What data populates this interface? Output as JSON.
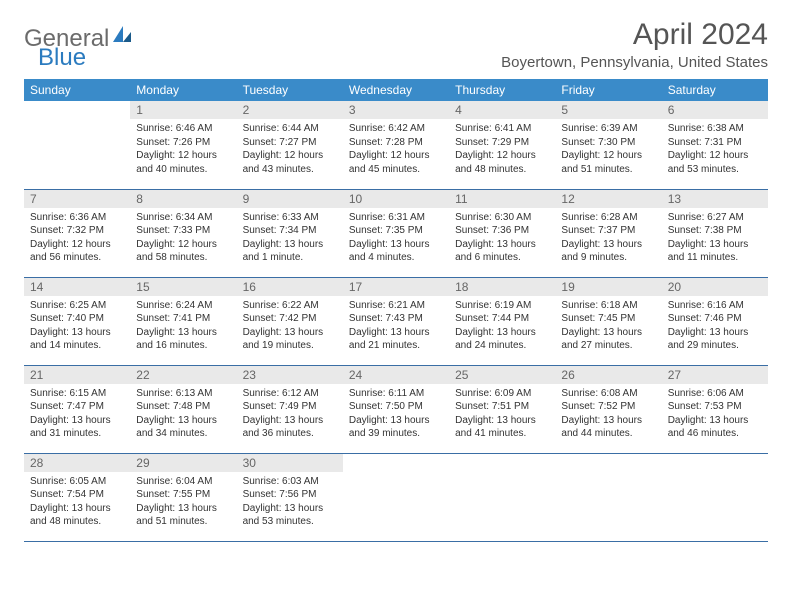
{
  "logo": {
    "text1": "General",
    "text2": "Blue"
  },
  "title": "April 2024",
  "location": "Boyertown, Pennsylvania, United States",
  "colors": {
    "header_bg": "#3a8bc9",
    "header_text": "#ffffff",
    "daynum_bg": "#e9e9e9",
    "daynum_text": "#666666",
    "row_border": "#3a6ea5",
    "body_text": "#333333",
    "title_text": "#555555",
    "logo_gray": "#6b6b6b",
    "logo_blue": "#2b7bbf"
  },
  "dayNames": [
    "Sunday",
    "Monday",
    "Tuesday",
    "Wednesday",
    "Thursday",
    "Friday",
    "Saturday"
  ],
  "weeks": [
    [
      null,
      {
        "n": "1",
        "sr": "6:46 AM",
        "ss": "7:26 PM",
        "dl": "12 hours and 40 minutes."
      },
      {
        "n": "2",
        "sr": "6:44 AM",
        "ss": "7:27 PM",
        "dl": "12 hours and 43 minutes."
      },
      {
        "n": "3",
        "sr": "6:42 AM",
        "ss": "7:28 PM",
        "dl": "12 hours and 45 minutes."
      },
      {
        "n": "4",
        "sr": "6:41 AM",
        "ss": "7:29 PM",
        "dl": "12 hours and 48 minutes."
      },
      {
        "n": "5",
        "sr": "6:39 AM",
        "ss": "7:30 PM",
        "dl": "12 hours and 51 minutes."
      },
      {
        "n": "6",
        "sr": "6:38 AM",
        "ss": "7:31 PM",
        "dl": "12 hours and 53 minutes."
      }
    ],
    [
      {
        "n": "7",
        "sr": "6:36 AM",
        "ss": "7:32 PM",
        "dl": "12 hours and 56 minutes."
      },
      {
        "n": "8",
        "sr": "6:34 AM",
        "ss": "7:33 PM",
        "dl": "12 hours and 58 minutes."
      },
      {
        "n": "9",
        "sr": "6:33 AM",
        "ss": "7:34 PM",
        "dl": "13 hours and 1 minute."
      },
      {
        "n": "10",
        "sr": "6:31 AM",
        "ss": "7:35 PM",
        "dl": "13 hours and 4 minutes."
      },
      {
        "n": "11",
        "sr": "6:30 AM",
        "ss": "7:36 PM",
        "dl": "13 hours and 6 minutes."
      },
      {
        "n": "12",
        "sr": "6:28 AM",
        "ss": "7:37 PM",
        "dl": "13 hours and 9 minutes."
      },
      {
        "n": "13",
        "sr": "6:27 AM",
        "ss": "7:38 PM",
        "dl": "13 hours and 11 minutes."
      }
    ],
    [
      {
        "n": "14",
        "sr": "6:25 AM",
        "ss": "7:40 PM",
        "dl": "13 hours and 14 minutes."
      },
      {
        "n": "15",
        "sr": "6:24 AM",
        "ss": "7:41 PM",
        "dl": "13 hours and 16 minutes."
      },
      {
        "n": "16",
        "sr": "6:22 AM",
        "ss": "7:42 PM",
        "dl": "13 hours and 19 minutes."
      },
      {
        "n": "17",
        "sr": "6:21 AM",
        "ss": "7:43 PM",
        "dl": "13 hours and 21 minutes."
      },
      {
        "n": "18",
        "sr": "6:19 AM",
        "ss": "7:44 PM",
        "dl": "13 hours and 24 minutes."
      },
      {
        "n": "19",
        "sr": "6:18 AM",
        "ss": "7:45 PM",
        "dl": "13 hours and 27 minutes."
      },
      {
        "n": "20",
        "sr": "6:16 AM",
        "ss": "7:46 PM",
        "dl": "13 hours and 29 minutes."
      }
    ],
    [
      {
        "n": "21",
        "sr": "6:15 AM",
        "ss": "7:47 PM",
        "dl": "13 hours and 31 minutes."
      },
      {
        "n": "22",
        "sr": "6:13 AM",
        "ss": "7:48 PM",
        "dl": "13 hours and 34 minutes."
      },
      {
        "n": "23",
        "sr": "6:12 AM",
        "ss": "7:49 PM",
        "dl": "13 hours and 36 minutes."
      },
      {
        "n": "24",
        "sr": "6:11 AM",
        "ss": "7:50 PM",
        "dl": "13 hours and 39 minutes."
      },
      {
        "n": "25",
        "sr": "6:09 AM",
        "ss": "7:51 PM",
        "dl": "13 hours and 41 minutes."
      },
      {
        "n": "26",
        "sr": "6:08 AM",
        "ss": "7:52 PM",
        "dl": "13 hours and 44 minutes."
      },
      {
        "n": "27",
        "sr": "6:06 AM",
        "ss": "7:53 PM",
        "dl": "13 hours and 46 minutes."
      }
    ],
    [
      {
        "n": "28",
        "sr": "6:05 AM",
        "ss": "7:54 PM",
        "dl": "13 hours and 48 minutes."
      },
      {
        "n": "29",
        "sr": "6:04 AM",
        "ss": "7:55 PM",
        "dl": "13 hours and 51 minutes."
      },
      {
        "n": "30",
        "sr": "6:03 AM",
        "ss": "7:56 PM",
        "dl": "13 hours and 53 minutes."
      },
      null,
      null,
      null,
      null
    ]
  ]
}
